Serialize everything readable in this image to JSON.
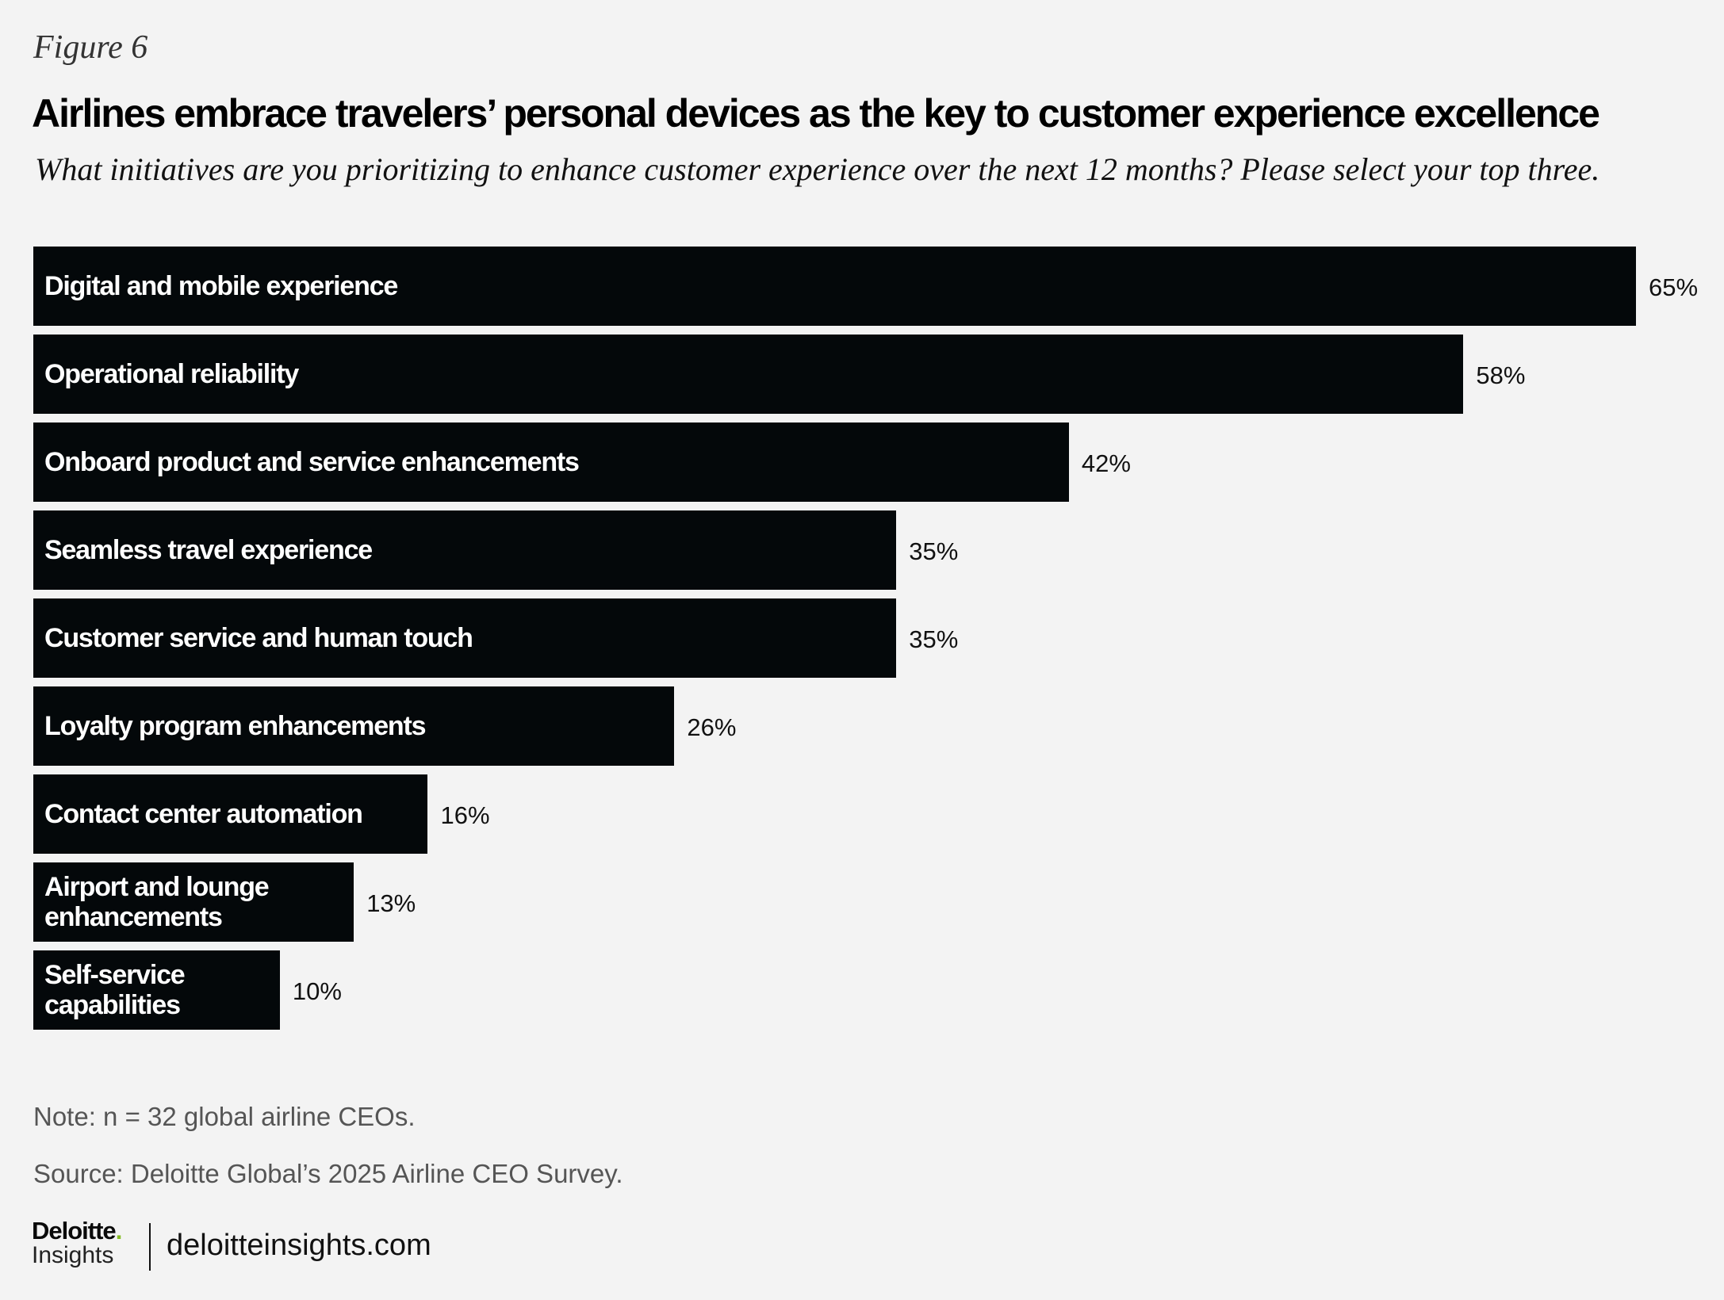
{
  "figure_label": "Figure 6",
  "title": "Airlines embrace travelers’ personal devices as the key to customer experience excellence",
  "subtitle": "What initiatives are you prioritizing to enhance customer experience over the next 12 months? Please select your top three.",
  "chart_data": {
    "type": "bar",
    "orientation": "horizontal",
    "categories": [
      "Digital and mobile experience",
      "Operational reliability",
      "Onboard product and service enhancements",
      "Seamless travel experience",
      "Customer service and human touch",
      "Loyalty program enhancements",
      "Contact center automation",
      "Airport and lounge enhancements",
      "Self-service capabilities"
    ],
    "display_labels": [
      "Digital and mobile experience",
      "Operational reliability",
      "Onboard product and service enhancements",
      "Seamless travel experience",
      "Customer service and human touch",
      "Loyalty program enhancements",
      "Contact center automation",
      "Airport and lounge\nenhancements",
      "Self-service\ncapabilities"
    ],
    "values": [
      65,
      58,
      42,
      35,
      35,
      26,
      16,
      13,
      10
    ],
    "value_labels": [
      "65%",
      "58%",
      "42%",
      "35%",
      "35%",
      "26%",
      "16%",
      "13%",
      "10%"
    ],
    "unit": "%",
    "xlim": [
      0,
      65
    ],
    "bar_color": "#04080a",
    "grid": false
  },
  "note": "Note: n = 32 global airline CEOs.",
  "source": "Source: Deloitte Global’s 2025 Airline CEO Survey.",
  "logo": {
    "line1": "Deloitte",
    "dot": ".",
    "line2": "Insights",
    "dot_color": "#86bc25"
  },
  "url": "deloitteinsights.com"
}
